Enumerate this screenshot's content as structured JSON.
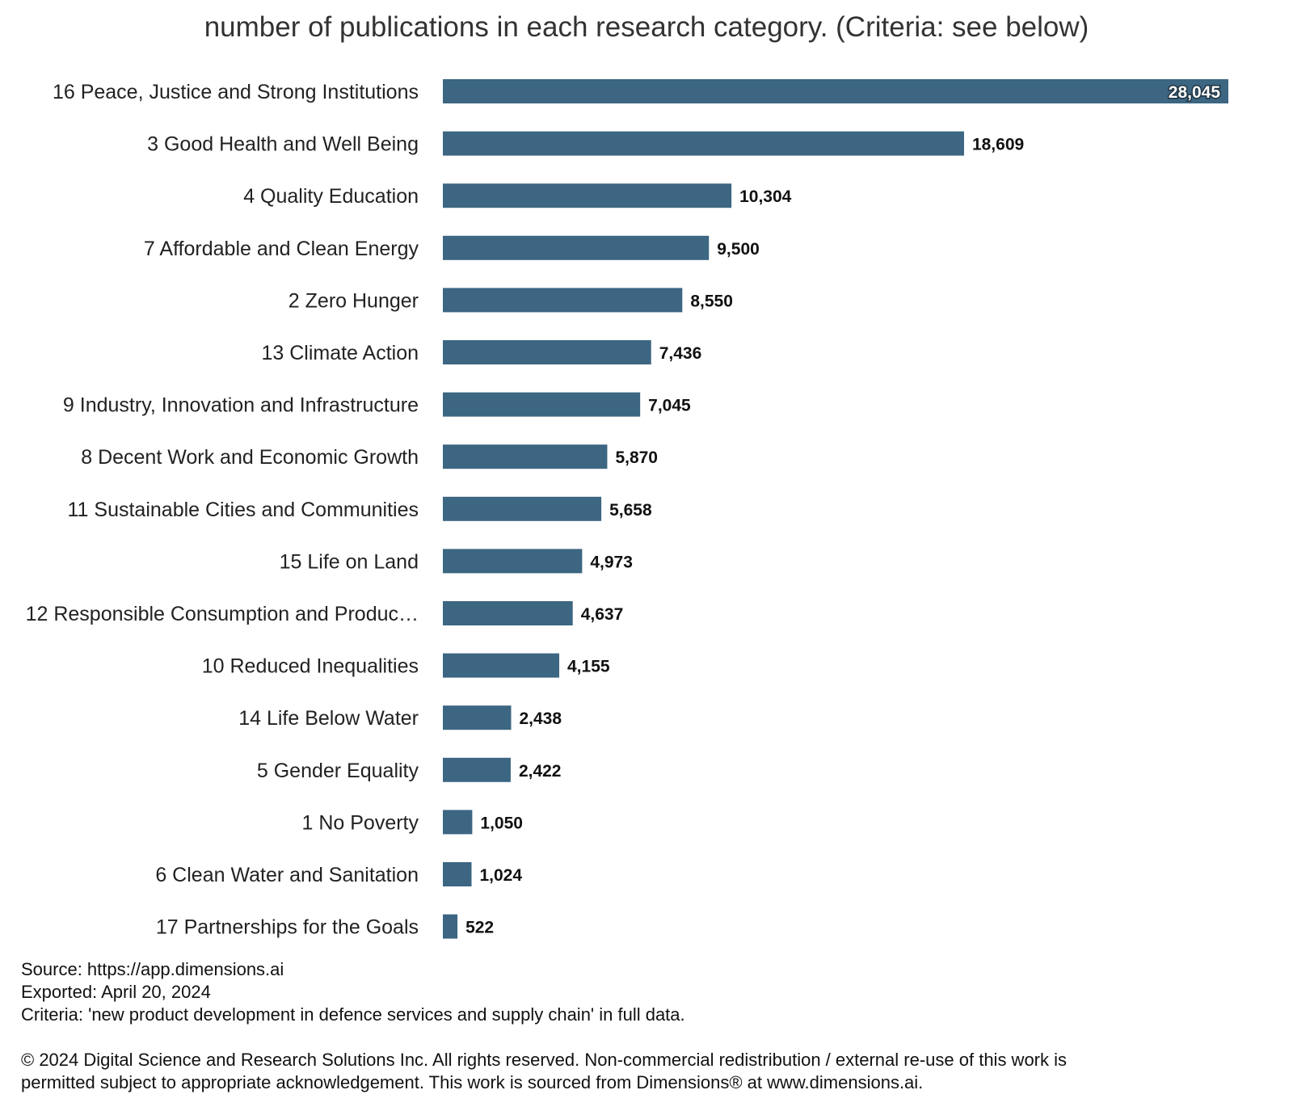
{
  "chart_data": {
    "type": "bar",
    "orientation": "horizontal",
    "title": "number of publications in each research category. (Criteria: see below)",
    "categories": [
      "16 Peace, Justice and Strong Institutions",
      "3 Good Health and Well Being",
      "4 Quality Education",
      "7 Affordable and Clean Energy",
      "2 Zero Hunger",
      "13 Climate Action",
      "9 Industry, Innovation and Infrastructure",
      "8 Decent Work and Economic Growth",
      "11 Sustainable Cities and Communities",
      "15 Life on Land",
      "12 Responsible Consumption and Produc…",
      "10 Reduced Inequalities",
      "14 Life Below Water",
      "5 Gender Equality",
      "1 No Poverty",
      "6 Clean Water and Sanitation",
      "17 Partnerships for the Goals"
    ],
    "values": [
      28045,
      18609,
      10304,
      9500,
      8550,
      7436,
      7045,
      5870,
      5658,
      4973,
      4637,
      4155,
      2438,
      2422,
      1050,
      1024,
      522
    ],
    "value_labels": [
      "28,045",
      "18,609",
      "10,304",
      "9,500",
      "8,550",
      "7,436",
      "7,045",
      "5,870",
      "5,658",
      "4,973",
      "4,637",
      "4,155",
      "2,438",
      "2,422",
      "1,050",
      "1,024",
      "522"
    ],
    "xlim": [
      0,
      28045
    ],
    "grid": false,
    "bar_color": "#3c6681"
  },
  "footer": {
    "source": "Source: https://app.dimensions.ai",
    "exported": "Exported: April 20, 2024",
    "criteria": "Criteria: 'new product development in defence services and supply chain' in full data.",
    "copyright_line1": "© 2024 Digital Science and Research Solutions Inc. All rights reserved. Non-commercial redistribution / external re-use of this work is",
    "copyright_line2": "permitted subject to appropriate acknowledgement. This work is sourced from Dimensions® at www.dimensions.ai."
  }
}
